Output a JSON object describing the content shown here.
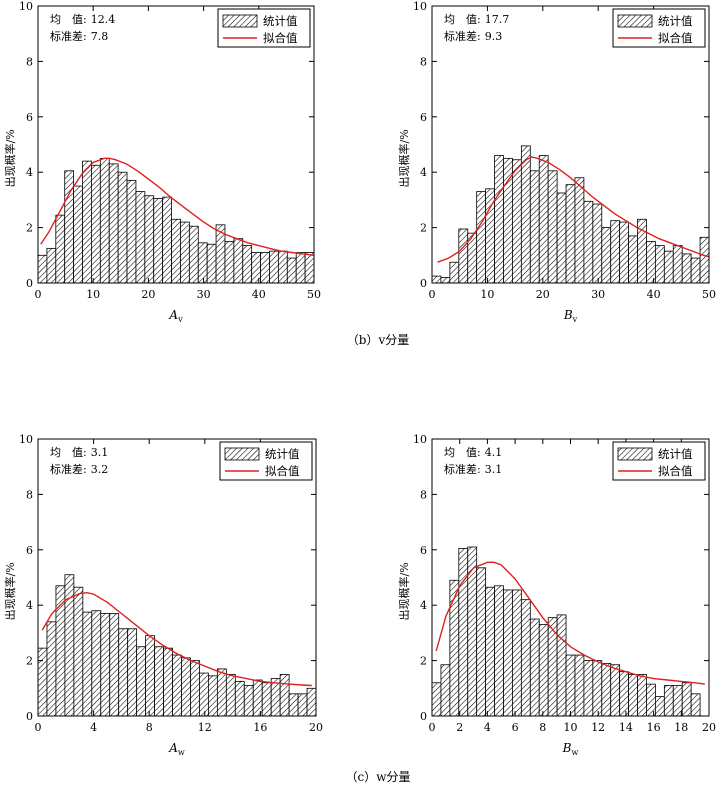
{
  "captions": [
    "（b）v分量",
    "（c）w分量"
  ],
  "legend": {
    "bar_label": "统计值",
    "line_label": "拟合值"
  },
  "chart_data": [
    {
      "type": "bar",
      "ylabel": "出现概率/%",
      "xlabel": {
        "main": "A",
        "sub": "v"
      },
      "stats": [
        {
          "label": "均　值:",
          "value": "12.4"
        },
        {
          "label": "标准差:",
          "value": "7.8"
        }
      ],
      "xlim": [
        0,
        50
      ],
      "ylim": [
        0,
        10
      ],
      "xticks": [
        "0",
        "10",
        "20",
        "30",
        "40",
        "50"
      ],
      "yticks": [
        "0",
        "2",
        "4",
        "6",
        "8",
        "10"
      ],
      "bin_width": 1.6129,
      "values": [
        1.0,
        1.25,
        2.45,
        4.05,
        3.5,
        4.4,
        4.25,
        4.5,
        4.3,
        4.0,
        3.7,
        3.3,
        3.15,
        3.05,
        3.1,
        2.3,
        2.2,
        2.05,
        1.45,
        1.4,
        2.1,
        1.5,
        1.6,
        1.35,
        1.1,
        1.1,
        1.15,
        1.15,
        0.9,
        1.1,
        1.1
      ],
      "fit": {
        "type": "lognormal",
        "x": [
          0.5,
          2,
          4,
          6,
          8,
          10,
          12,
          13,
          14,
          16,
          18,
          20,
          22,
          24,
          26,
          28,
          30,
          32,
          34,
          36,
          38,
          40,
          42,
          44,
          46,
          48,
          50
        ],
        "y": [
          1.4,
          1.85,
          2.6,
          3.35,
          3.95,
          4.35,
          4.5,
          4.5,
          4.45,
          4.3,
          4.05,
          3.75,
          3.45,
          3.1,
          2.8,
          2.5,
          2.2,
          1.95,
          1.75,
          1.6,
          1.45,
          1.35,
          1.25,
          1.15,
          1.1,
          1.05,
          1.0
        ]
      }
    },
    {
      "type": "bar",
      "ylabel": "出现概率/%",
      "xlabel": {
        "main": "B",
        "sub": "v"
      },
      "stats": [
        {
          "label": "均　值:",
          "value": "17.7"
        },
        {
          "label": "标准差:",
          "value": "9.3"
        }
      ],
      "xlim": [
        0,
        50
      ],
      "ylim": [
        0,
        10
      ],
      "xticks": [
        "0",
        "10",
        "20",
        "30",
        "40",
        "50"
      ],
      "yticks": [
        "0",
        "2",
        "4",
        "6",
        "8",
        "10"
      ],
      "bin_width": 1.6129,
      "values": [
        0.25,
        0.2,
        0.75,
        1.95,
        1.8,
        3.3,
        3.4,
        4.6,
        4.5,
        4.45,
        4.95,
        4.05,
        4.6,
        4.05,
        3.25,
        3.55,
        3.8,
        2.95,
        2.85,
        2.0,
        2.25,
        2.2,
        1.7,
        2.3,
        1.5,
        1.35,
        1.15,
        1.35,
        1.05,
        0.9,
        1.65
      ],
      "fit": {
        "type": "lognormal",
        "x": [
          1,
          3,
          5,
          7,
          9,
          11,
          13,
          15,
          17,
          18,
          19,
          21,
          23,
          25,
          27,
          29,
          31,
          33,
          35,
          37,
          39,
          41,
          43,
          45,
          47,
          49,
          50
        ],
        "y": [
          0.75,
          0.9,
          1.15,
          1.6,
          2.2,
          2.9,
          3.5,
          4.05,
          4.45,
          4.55,
          4.5,
          4.35,
          4.1,
          3.8,
          3.45,
          3.1,
          2.8,
          2.5,
          2.25,
          2.0,
          1.8,
          1.6,
          1.45,
          1.3,
          1.15,
          1.0,
          0.95
        ]
      }
    },
    {
      "type": "bar",
      "ylabel": "出现概率/%",
      "xlabel": {
        "main": "A",
        "sub": "w"
      },
      "stats": [
        {
          "label": "均　值:",
          "value": "3.1"
        },
        {
          "label": "标准差:",
          "value": "3.2"
        }
      ],
      "xlim": [
        0,
        20
      ],
      "ylim": [
        0,
        10
      ],
      "xticks": [
        "0",
        "4",
        "8",
        "12",
        "16",
        "20"
      ],
      "yticks": [
        "0",
        "2",
        "4",
        "6",
        "8",
        "10"
      ],
      "bin_width": 0.6452,
      "values": [
        2.45,
        3.4,
        4.7,
        5.1,
        4.65,
        3.75,
        3.8,
        3.7,
        3.7,
        3.15,
        3.15,
        2.5,
        2.9,
        2.5,
        2.45,
        2.2,
        2.1,
        2.0,
        1.55,
        1.45,
        1.7,
        1.5,
        1.25,
        1.1,
        1.3,
        1.2,
        1.35,
        1.5,
        0.8,
        0.8,
        1.0
      ],
      "fit": {
        "type": "lognormal",
        "x": [
          0.3,
          1,
          2,
          3,
          3.5,
          4,
          5,
          6,
          7,
          8,
          9,
          10,
          11,
          12,
          13,
          14,
          15,
          16,
          17,
          18,
          19,
          19.7
        ],
        "y": [
          3.1,
          3.7,
          4.2,
          4.42,
          4.45,
          4.4,
          4.1,
          3.7,
          3.3,
          2.9,
          2.55,
          2.25,
          2.0,
          1.8,
          1.6,
          1.45,
          1.35,
          1.25,
          1.2,
          1.15,
          1.12,
          1.1
        ]
      }
    },
    {
      "type": "bar",
      "ylabel": "出现概率/%",
      "xlabel": {
        "main": "B",
        "sub": "w"
      },
      "stats": [
        {
          "label": "均　值:",
          "value": "4.1"
        },
        {
          "label": "标准差:",
          "value": "3.1"
        }
      ],
      "xlim": [
        0,
        20
      ],
      "ylim": [
        0,
        10
      ],
      "xticks": [
        "0",
        "2",
        "4",
        "6",
        "8",
        "10",
        "12",
        "14",
        "16",
        "18",
        "20"
      ],
      "yticks": [
        "0",
        "2",
        "4",
        "6",
        "8",
        "10"
      ],
      "bin_width": 0.6452,
      "values": [
        1.2,
        1.85,
        4.9,
        6.05,
        6.1,
        5.35,
        4.65,
        4.7,
        4.55,
        4.55,
        4.2,
        3.5,
        3.3,
        3.55,
        3.65,
        2.2,
        2.2,
        2.0,
        2.0,
        1.9,
        1.85,
        1.6,
        1.5,
        1.5,
        1.15,
        0.7,
        1.1,
        1.1,
        1.2,
        0.8
      ],
      "fit": {
        "type": "lognormal",
        "x": [
          0.3,
          1,
          2,
          3,
          4,
          4.5,
          5,
          6,
          7,
          8,
          9,
          10,
          11,
          12,
          13,
          14,
          15,
          16,
          17,
          18,
          19,
          19.7
        ],
        "y": [
          2.35,
          3.6,
          4.7,
          5.35,
          5.55,
          5.55,
          5.45,
          4.95,
          4.25,
          3.55,
          2.95,
          2.5,
          2.2,
          1.95,
          1.75,
          1.6,
          1.45,
          1.35,
          1.3,
          1.25,
          1.2,
          1.15
        ]
      }
    }
  ]
}
